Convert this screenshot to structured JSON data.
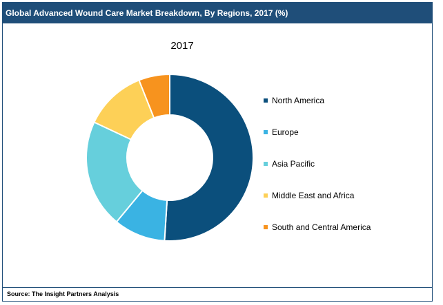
{
  "header": {
    "title": "Global Advanced Wound Care Market Breakdown, By Regions, 2017 (%)"
  },
  "footer": {
    "source": "Source: The Insight Partners Analysis"
  },
  "chart_data": {
    "type": "pie",
    "donut": true,
    "title": "2017",
    "legend_position": "right",
    "categories": [
      "North America",
      "Europe",
      "Asia Pacific",
      "Middle East and Africa",
      "South and Central America"
    ],
    "values": [
      51,
      10,
      21,
      12,
      6
    ],
    "colors": [
      "#0b4f7c",
      "#3ab3e3",
      "#66cfdc",
      "#fdd057",
      "#f7931e"
    ]
  }
}
